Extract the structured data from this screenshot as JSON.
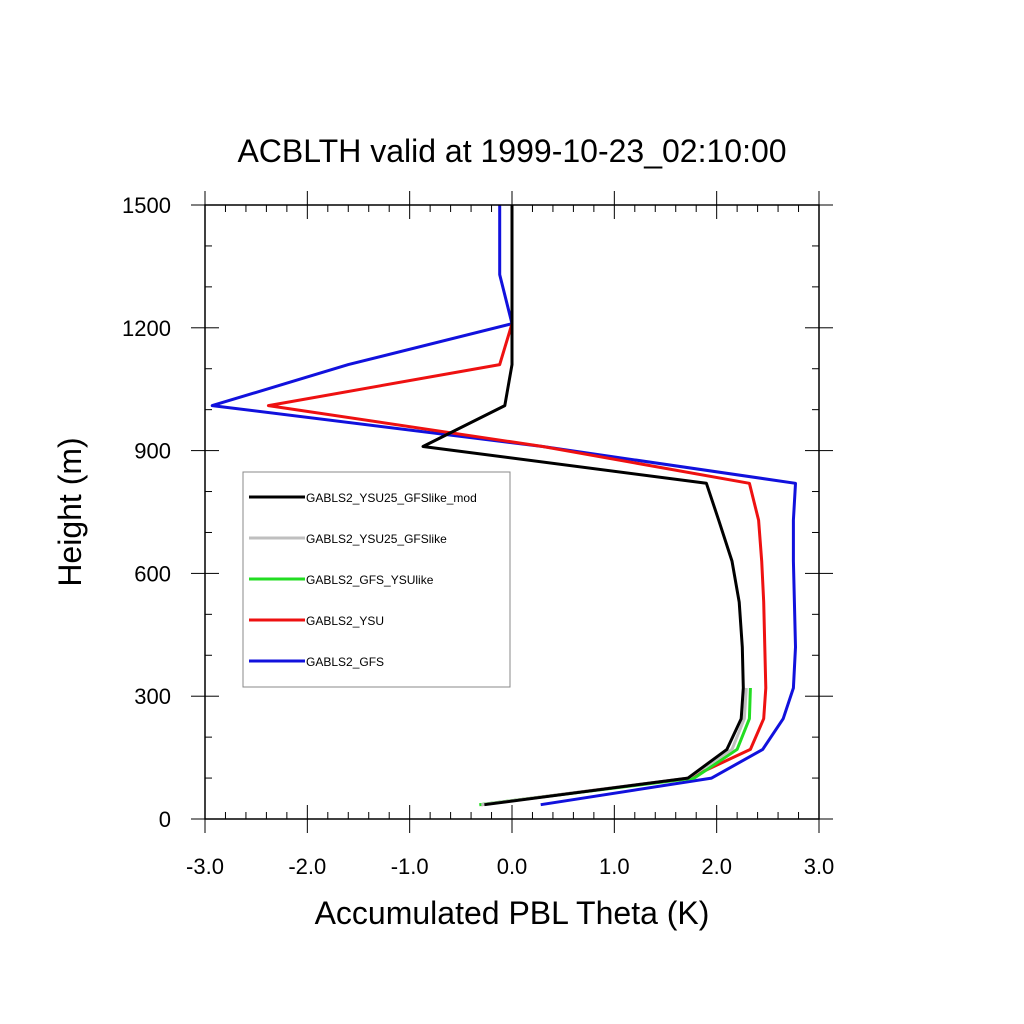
{
  "chart_data": {
    "type": "line",
    "title": "ACBLTH valid at 1999-10-23_02:10:00",
    "xlabel": "Accumulated PBL Theta (K)",
    "ylabel": "Height (m)",
    "xlim": [
      -3.0,
      3.0
    ],
    "ylim": [
      0,
      1500
    ],
    "x_ticks": [
      "-3.0",
      "-2.0",
      "-1.0",
      "0.0",
      "1.0",
      "2.0",
      "3.0"
    ],
    "y_ticks": [
      "0",
      "300",
      "600",
      "900",
      "1200",
      "1500"
    ],
    "grid": false,
    "legend_position": "left-middle",
    "series": [
      {
        "name": "GABLS2_YSU25_GFSlike_mod",
        "color": "#000000",
        "points": [
          [
            -0.27,
            35
          ],
          [
            1.72,
            100
          ],
          [
            2.1,
            170
          ],
          [
            2.24,
            245
          ],
          [
            2.26,
            320
          ],
          [
            2.25,
            420
          ],
          [
            2.22,
            530
          ],
          [
            2.15,
            630
          ],
          [
            2.02,
            730
          ],
          [
            1.9,
            820
          ],
          [
            -0.87,
            910
          ],
          [
            -0.07,
            1010
          ],
          [
            0.0,
            1110
          ],
          [
            0.0,
            1210
          ],
          [
            0.0,
            1500
          ]
        ]
      },
      {
        "name": "GABLS2_YSU25_GFSlike",
        "color": "#bfbfbf",
        "points": [
          [
            -0.3,
            35
          ],
          [
            1.72,
            100
          ],
          [
            2.15,
            170
          ],
          [
            2.27,
            245
          ],
          [
            2.29,
            320
          ]
        ]
      },
      {
        "name": "GABLS2_GFS_YSUlike",
        "color": "#22dd22",
        "points": [
          [
            -0.32,
            35
          ],
          [
            1.78,
            100
          ],
          [
            2.2,
            170
          ],
          [
            2.32,
            245
          ],
          [
            2.33,
            320
          ]
        ]
      },
      {
        "name": "GABLS2_YSU",
        "color": "#ee1111",
        "points": [
          [
            -0.3,
            35
          ],
          [
            1.73,
            100
          ],
          [
            2.33,
            170
          ],
          [
            2.46,
            245
          ],
          [
            2.48,
            320
          ],
          [
            2.47,
            420
          ],
          [
            2.46,
            530
          ],
          [
            2.44,
            630
          ],
          [
            2.41,
            730
          ],
          [
            2.32,
            820
          ],
          [
            0.3,
            910
          ],
          [
            -2.38,
            1010
          ],
          [
            -0.12,
            1110
          ],
          [
            0.0,
            1210
          ]
        ]
      },
      {
        "name": "GABLS2_GFS",
        "color": "#1111dd",
        "points": [
          [
            0.28,
            35
          ],
          [
            1.95,
            100
          ],
          [
            2.45,
            170
          ],
          [
            2.65,
            245
          ],
          [
            2.75,
            320
          ],
          [
            2.77,
            420
          ],
          [
            2.76,
            530
          ],
          [
            2.75,
            630
          ],
          [
            2.75,
            730
          ],
          [
            2.77,
            820
          ],
          [
            0.3,
            910
          ],
          [
            -2.93,
            1010
          ],
          [
            -1.6,
            1110
          ],
          [
            0.0,
            1210
          ],
          [
            -0.12,
            1330
          ],
          [
            -0.12,
            1500
          ]
        ]
      }
    ]
  }
}
